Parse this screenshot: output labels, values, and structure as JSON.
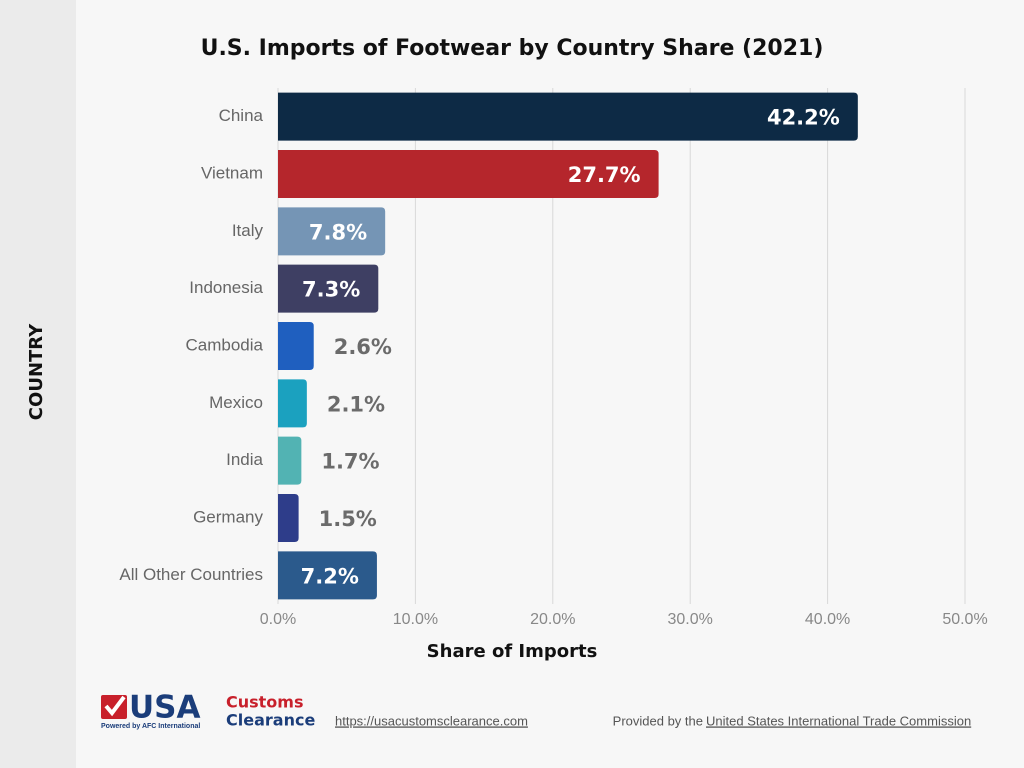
{
  "chart_data": {
    "type": "barh",
    "title": "U.S. Imports of Footwear by Country Share (2021)",
    "x_label": "Share of Imports",
    "y_label": "COUNTRY",
    "categories": [
      "China",
      "Vietnam",
      "Italy",
      "Indonesia",
      "Cambodia",
      "Mexico",
      "India",
      "Germany",
      "All Other Countries"
    ],
    "values": [
      42.2,
      27.7,
      7.8,
      7.3,
      2.6,
      2.1,
      1.7,
      1.5,
      7.2
    ],
    "value_labels": [
      "42.2%",
      "27.7%",
      "7.8%",
      "7.3%",
      "2.6%",
      "2.1%",
      "1.7%",
      "1.5%",
      "7.2%"
    ],
    "colors": [
      "#0d2a45",
      "#b5262c",
      "#7595b5",
      "#3e3f63",
      "#1f5fbf",
      "#1ba1bf",
      "#52b3b3",
      "#2e3d8a",
      "#2b5a8c"
    ],
    "xlim": [
      0,
      50
    ],
    "xticks": [
      {
        "value": 0,
        "label": "0.0%"
      },
      {
        "value": 10,
        "label": "10.0%"
      },
      {
        "value": 20,
        "label": "20.0%"
      },
      {
        "value": 30,
        "label": "30.0%"
      },
      {
        "value": 40,
        "label": "40.0%"
      },
      {
        "value": 50,
        "label": "50.0%"
      }
    ],
    "grid": true
  },
  "footer": {
    "logo_main": "USA",
    "logo_top": "Customs",
    "logo_bottom": "Clearance",
    "logo_tagline": "Powered by AFC International",
    "url": "https://usacustomsclearance.com",
    "credit_prefix": "Provided by the",
    "credit_link": "United States International Trade Commission"
  }
}
